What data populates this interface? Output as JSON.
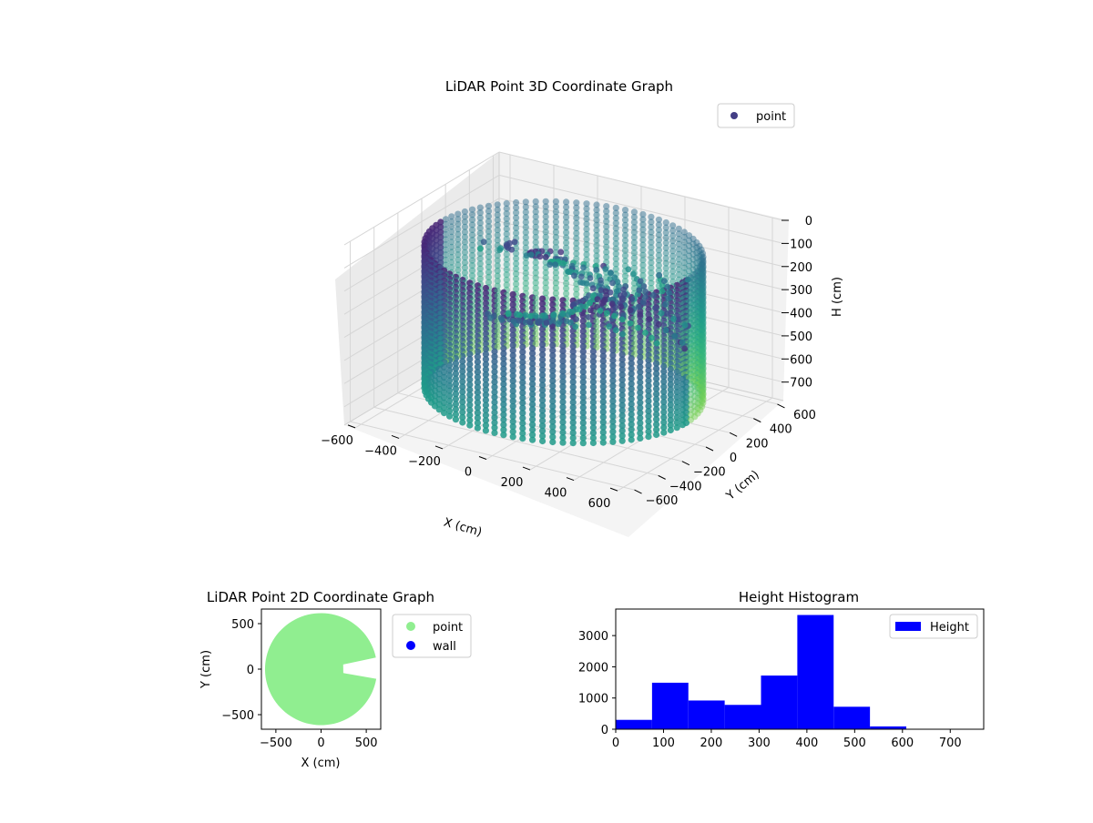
{
  "chart_data": [
    {
      "type": "scatter3d",
      "title": "LiDAR Point 3D Coordinate Graph",
      "xlabel": "X (cm)",
      "ylabel": "Y (cm)",
      "zlabel": "H (cm)",
      "xticks": [
        "−600",
        "−400",
        "−200",
        "0",
        "200",
        "400",
        "600"
      ],
      "yticks": [
        "−600",
        "−400",
        "−200",
        "0",
        "200",
        "400",
        "600"
      ],
      "zticks": [
        "0",
        "100",
        "200",
        "300",
        "400",
        "500",
        "600",
        "700"
      ],
      "xlim": [
        -650,
        650
      ],
      "ylim": [
        -650,
        650
      ],
      "zlim": [
        0,
        780
      ],
      "z_axis_inverted": true,
      "colormap": "viridis",
      "legend": {
        "position": "top-right",
        "entries": [
          {
            "name": "point",
            "color": "#433e85"
          }
        ]
      }
    },
    {
      "type": "scatter",
      "title": "LiDAR Point 2D Coordinate Graph",
      "xlabel": "X (cm)",
      "ylabel": "Y (cm)",
      "xticks": [
        "−500",
        "0",
        "500"
      ],
      "yticks": [
        "−500",
        "0",
        "500"
      ],
      "xlim": [
        -660,
        660
      ],
      "ylim": [
        -660,
        660
      ],
      "series": [
        {
          "name": "point",
          "color": "#90ee90",
          "shape": "disk",
          "center": [
            0,
            0
          ],
          "radius": 620,
          "notch_angle_deg": [
            -10,
            12
          ],
          "notch_inner_radius": 250
        },
        {
          "name": "wall",
          "color": "#0000ff",
          "points": []
        }
      ],
      "legend": {
        "position": "outside-right",
        "entries": [
          {
            "name": "point",
            "color": "#90ee90"
          },
          {
            "name": "wall",
            "color": "#0000ff"
          }
        ]
      }
    },
    {
      "type": "bar",
      "subtype": "histogram",
      "title": "Height Histogram",
      "xticks": [
        "0",
        "100",
        "200",
        "300",
        "400",
        "500",
        "600",
        "700"
      ],
      "yticks": [
        "0",
        "1000",
        "2000",
        "3000"
      ],
      "xlim": [
        0,
        770
      ],
      "ylim": [
        0,
        3850
      ],
      "bin_edges": [
        0,
        76,
        152,
        228,
        304,
        380,
        456,
        532,
        608,
        684,
        760
      ],
      "values": [
        300,
        1490,
        920,
        780,
        1720,
        3660,
        720,
        90,
        5,
        5
      ],
      "color": "#0000ff",
      "legend": {
        "position": "top-right",
        "entries": [
          {
            "name": "Height",
            "color": "#0000ff"
          }
        ]
      }
    }
  ]
}
